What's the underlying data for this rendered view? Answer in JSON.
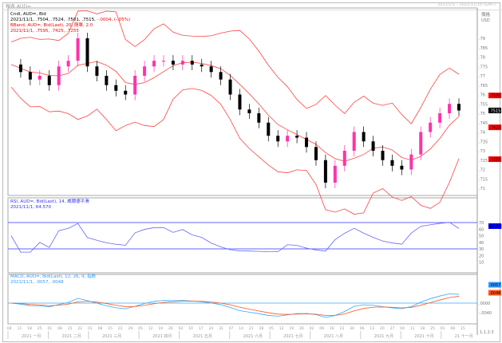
{
  "window": {
    "title": "報表 AUD=",
    "date_range": "2021/1/1 - 2021/11/16 (GMT)"
  },
  "legend": {
    "price_title": "Cndl, AUD=, Bid",
    "price_values": "2021/11/1, .7504, .7524, .7501, .7515,",
    "price_change": "-.0004, (-.05%)",
    "bband_title": "BBand, AUD=, Bid(Last), 20, 簡單, 2.0",
    "bband_values": "2021/11/1, .7595, .7425, .7255",
    "rsi_title": "RSI, AUD=, Bid(Last), 14, 威爾德平滑",
    "rsi_values": "2021/11/1, 64.570",
    "macd_title": "MACD, AUD=, Bid(Last), 12, 26, 9, 指數",
    "macd_values": "2021/11/1, .0057, .0048"
  },
  "axis": {
    "price_header": "價格",
    "currency": "USD",
    "price_ticks": [
      ".79",
      ".785",
      ".78",
      ".775",
      ".77",
      ".765",
      ".76",
      ".755",
      ".75",
      ".745",
      ".74",
      ".735",
      ".73",
      ".725",
      ".72",
      ".715",
      ".71"
    ],
    "rsi_ticks": [
      "70",
      "60",
      "50",
      "40",
      "30",
      "20",
      "10"
    ],
    "macd_ticks": [
      ".0000",
      "-.0040"
    ],
    "zoom_label": "1:1.2:3"
  },
  "markers": {
    "bb_upper": ".7595",
    "last": ".7515",
    "bb_mid": ".7425",
    "bb_lower": ".7255",
    "rsi": "64.570",
    "macd": ".0057",
    "signal": ".0048"
  },
  "colors": {
    "up": "#ff33aa",
    "down": "#000000",
    "bband": "#ff4444",
    "rsi": "#6666ff",
    "macd": "#33aaff",
    "signal": "#ff5522"
  },
  "chart_data": {
    "type": "candlestick",
    "x_day_ticks": [
      "04",
      "11",
      "18",
      "25",
      "01",
      "08",
      "15",
      "22",
      "01",
      "08",
      "15",
      "22",
      "29",
      "05",
      "12",
      "19",
      "26",
      "03",
      "10",
      "17",
      "24",
      "31",
      "07",
      "14",
      "21",
      "28",
      "05",
      "12",
      "19",
      "26",
      "02",
      "09",
      "16",
      "23",
      "30",
      "06",
      "13",
      "20",
      "27",
      "04",
      "11",
      "18",
      "25",
      "01",
      "08",
      "15"
    ],
    "x_months": [
      "2021 一月",
      "2021 二月",
      "2021 三月",
      "2021 四月",
      "2021 五月",
      "2021 六月",
      "2021 七月",
      "2021 八月",
      "2021 九月",
      "2021 十月",
      "21 十一月"
    ],
    "ylim": [
      0.708,
      0.8
    ],
    "weekly_close": [
      0.776,
      0.772,
      0.768,
      0.77,
      0.765,
      0.775,
      0.778,
      0.79,
      0.775,
      0.77,
      0.765,
      0.762,
      0.76,
      0.77,
      0.775,
      0.778,
      0.778,
      0.776,
      0.778,
      0.776,
      0.775,
      0.772,
      0.768,
      0.76,
      0.752,
      0.75,
      0.745,
      0.738,
      0.735,
      0.738,
      0.737,
      0.732,
      0.725,
      0.713,
      0.722,
      0.73,
      0.74,
      0.735,
      0.73,
      0.725,
      0.722,
      0.72,
      0.728,
      0.74,
      0.745,
      0.75,
      0.755,
      0.7515
    ],
    "rsi_levels": [
      70,
      30
    ]
  }
}
